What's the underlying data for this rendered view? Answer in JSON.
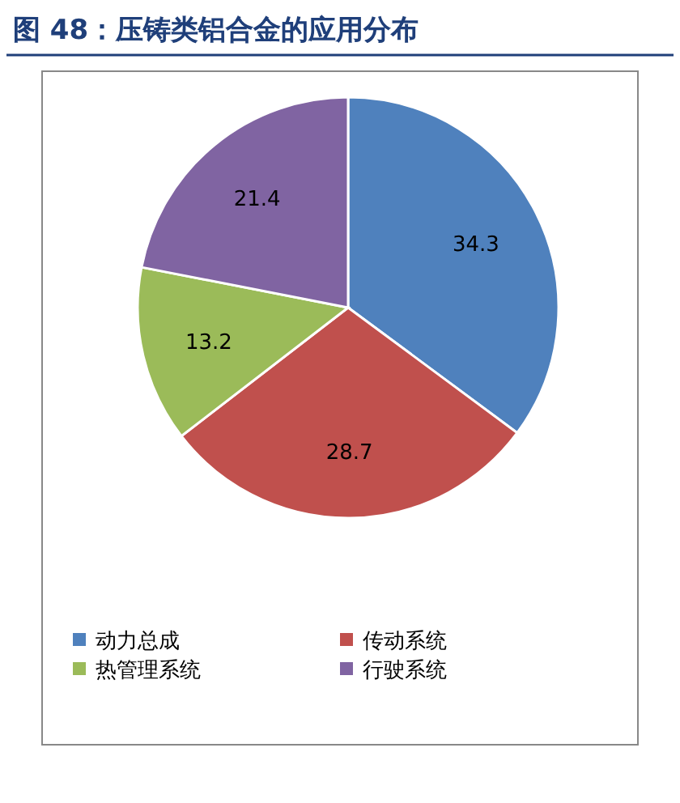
{
  "chart_data": {
    "type": "pie",
    "title": "图 48：压铸类铝合金的应用分布",
    "categories": [
      "动力总成",
      "传动系统",
      "热管理系统",
      "行驶系统"
    ],
    "values": [
      34.3,
      28.7,
      13.2,
      21.4
    ],
    "colors": [
      "#4f81bd",
      "#c0504d",
      "#9bbb59",
      "#8064a2"
    ],
    "data_labels": true,
    "legend": "bottom"
  }
}
